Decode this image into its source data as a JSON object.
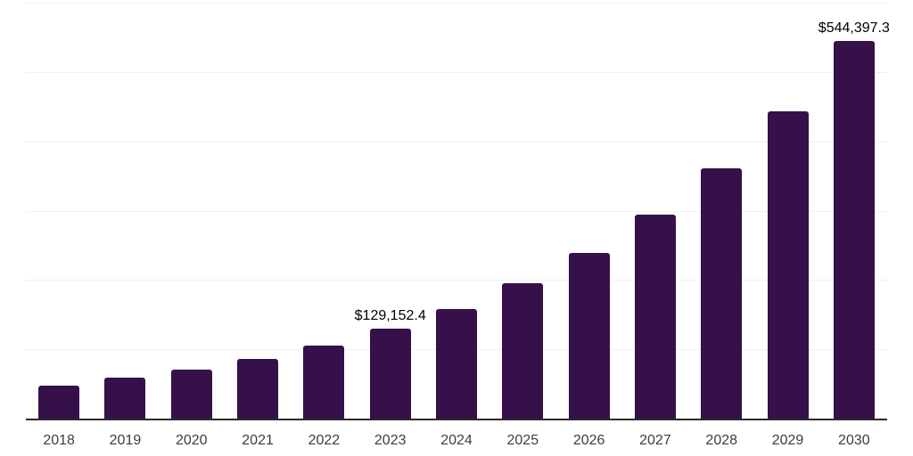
{
  "chart_data": {
    "type": "bar",
    "title": "",
    "xlabel": "",
    "ylabel": "",
    "categories": [
      "2018",
      "2019",
      "2020",
      "2021",
      "2022",
      "2023",
      "2024",
      "2025",
      "2026",
      "2027",
      "2028",
      "2029",
      "2030"
    ],
    "values": [
      48000,
      58500,
      70200,
      86100,
      105300,
      129152.4,
      158600,
      194800,
      239300,
      293900,
      361000,
      443300,
      544397.3
    ],
    "data_labels": {
      "2023": "$129,152.4",
      "2030": "$544,397.3"
    },
    "ylim": [
      0,
      600000
    ],
    "gridline_step": 100000,
    "grid": "horizontal-only",
    "legend": "none",
    "y_axis_tick_labels": "none",
    "colors": {
      "bar": "#351049",
      "gridline": "#f0f0f0",
      "axis_line": "#2b2b2b",
      "tick_label": "#3d3d3d",
      "data_label": "#000000",
      "background": "#ffffff"
    }
  }
}
